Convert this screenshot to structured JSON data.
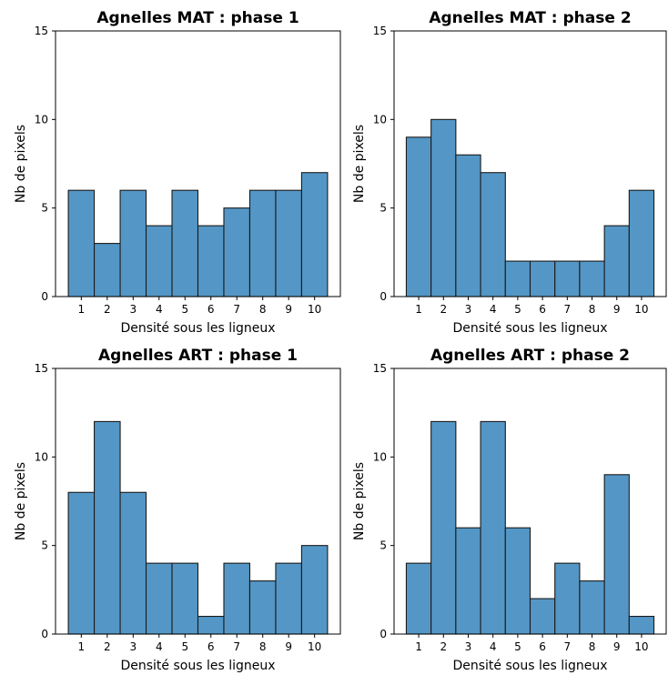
{
  "colors": {
    "bar_fill": "#5497c6",
    "bar_edge": "#1a1a1a",
    "axis": "#000000"
  },
  "chart_data": [
    {
      "type": "bar",
      "title": "Agnelles MAT : phase 1",
      "xlabel": "Densité sous les ligneux",
      "ylabel": "Nb de pixels",
      "categories": [
        "1",
        "2",
        "3",
        "4",
        "5",
        "6",
        "7",
        "8",
        "9",
        "10"
      ],
      "values": [
        6,
        3,
        6,
        4,
        6,
        4,
        5,
        6,
        6,
        7
      ],
      "ylim": [
        0,
        15
      ],
      "yticks": [
        "0",
        "5",
        "10",
        "15"
      ],
      "grid": false
    },
    {
      "type": "bar",
      "title": "Agnelles MAT : phase 2",
      "xlabel": "Densité sous les ligneux",
      "ylabel": "Nb de pixels",
      "categories": [
        "1",
        "2",
        "3",
        "4",
        "5",
        "6",
        "7",
        "8",
        "9",
        "10"
      ],
      "values": [
        9,
        10,
        8,
        7,
        2,
        2,
        2,
        2,
        4,
        6
      ],
      "ylim": [
        0,
        15
      ],
      "yticks": [
        "0",
        "5",
        "10",
        "15"
      ],
      "grid": false
    },
    {
      "type": "bar",
      "title": "Agnelles ART : phase 1",
      "xlabel": "Densité sous les ligneux",
      "ylabel": "Nb de pixels",
      "categories": [
        "1",
        "2",
        "3",
        "4",
        "5",
        "6",
        "7",
        "8",
        "9",
        "10"
      ],
      "values": [
        8,
        12,
        8,
        4,
        4,
        1,
        4,
        3,
        4,
        5
      ],
      "ylim": [
        0,
        15
      ],
      "yticks": [
        "0",
        "5",
        "10",
        "15"
      ],
      "grid": false
    },
    {
      "type": "bar",
      "title": "Agnelles ART : phase 2",
      "xlabel": "Densité sous les ligneux",
      "ylabel": "Nb de pixels",
      "categories": [
        "1",
        "2",
        "3",
        "4",
        "5",
        "6",
        "7",
        "8",
        "9",
        "10"
      ],
      "values": [
        4,
        12,
        6,
        12,
        6,
        2,
        4,
        3,
        9,
        1
      ],
      "ylim": [
        0,
        15
      ],
      "yticks": [
        "0",
        "5",
        "10",
        "15"
      ],
      "grid": false
    }
  ]
}
